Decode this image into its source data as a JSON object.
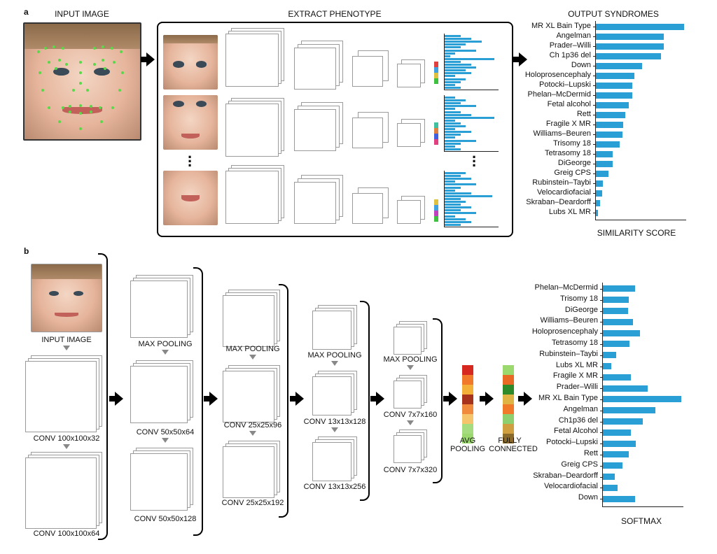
{
  "panel_a": {
    "label": "a",
    "input_header": "INPUT IMAGE",
    "extract_header": "EXTRACT PHENOTYPE",
    "output_header": "OUTPUT SYNDROMES",
    "axis_label": "SIMILARITY SCORE"
  },
  "panel_b": {
    "label": "b",
    "input_label": "INPUT IMAGE",
    "col1": [
      "CONV 100x100x32",
      "CONV 100x100x64"
    ],
    "col2": [
      "MAX POOLING",
      "CONV 50x50x64",
      "CONV 50x50x128"
    ],
    "col3": [
      "MAX POOLING",
      "CONV 25x25x96",
      "CONV 25x25x192"
    ],
    "col4": [
      "MAX POOLING",
      "CONV 13x13x128",
      "CONV 13x13x256"
    ],
    "col5": [
      "MAX POOLING",
      "CONV 7x7x160",
      "CONV 7x7x320"
    ],
    "avg_pooling": [
      "AVG",
      "POOLING"
    ],
    "fully_connected": [
      "FULLY",
      "CONNECTED"
    ],
    "axis_label": "SOFTMAX"
  },
  "colors": {
    "bar": "#2a9fd6",
    "arrow": "#000000",
    "small_arrow": "#888888"
  },
  "chart_data": [
    {
      "type": "bar",
      "orientation": "horizontal",
      "title": "OUTPUT SYNDROMES",
      "xlabel": "SIMILARITY SCORE",
      "categories": [
        "MR XL Bain Type",
        "Angelman",
        "Prader–Willi",
        "Ch 1p36 del",
        "Down",
        "Holoprosencephaly",
        "Potocki–Lupski",
        "Phelan–McDermid",
        "Fetal alcohol",
        "Rett",
        "Fragile X MR",
        "Williams–Beuren",
        "Trisomy 18",
        "Tetrasomy 18",
        "DiGeorge",
        "Greig CPS",
        "Rubinstein–Taybi",
        "Velocardiofacial",
        "Skraban–Deardorff",
        "Lubs XL MR"
      ],
      "values": [
        1.0,
        0.77,
        0.77,
        0.74,
        0.52,
        0.44,
        0.41,
        0.41,
        0.37,
        0.33,
        0.31,
        0.3,
        0.27,
        0.19,
        0.19,
        0.14,
        0.08,
        0.07,
        0.05,
        0.02
      ],
      "xlim": [
        0,
        1
      ]
    },
    {
      "type": "bar",
      "orientation": "horizontal",
      "xlabel": "SOFTMAX",
      "categories": [
        "Phelan–McDermid",
        "Trisomy 18",
        "DiGeorge",
        "Williams–Beuren",
        "Holoprosencephaly",
        "Tetrasomy 18",
        "Rubinstein–Taybi",
        "Lubs XL MR",
        "Fragile X MR",
        "Prader–Willi",
        "MR XL Bain Type",
        "Angelman",
        "Ch1p36 del",
        "Fetal Alcohol",
        "Potocki–Lupski",
        "Rett",
        "Greig CPS",
        "Skraban–Deardorff",
        "Velocardiofacial",
        "Down"
      ],
      "values": [
        0.41,
        0.33,
        0.32,
        0.38,
        0.47,
        0.34,
        0.17,
        0.11,
        0.36,
        0.57,
        1.0,
        0.67,
        0.51,
        0.36,
        0.42,
        0.33,
        0.25,
        0.15,
        0.19,
        0.41
      ],
      "xlim": [
        0,
        1
      ]
    }
  ]
}
